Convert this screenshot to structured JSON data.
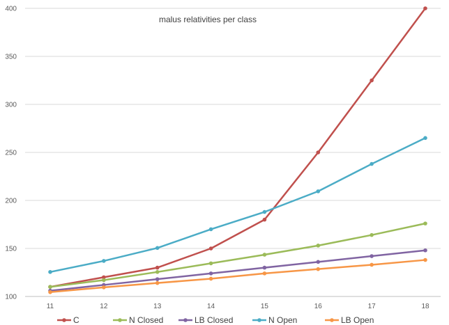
{
  "chart_data": {
    "type": "line",
    "title": "malus relativities per class",
    "xlabel": "",
    "ylabel": "",
    "categories": [
      "11",
      "12",
      "13",
      "14",
      "15",
      "16",
      "17",
      "18"
    ],
    "ylim": [
      100,
      400
    ],
    "yticks": [
      100,
      150,
      200,
      250,
      300,
      350,
      400
    ],
    "grid": "horizontal",
    "legend_position": "bottom",
    "series": [
      {
        "name": "C",
        "color": "#c0504d",
        "values": [
          110,
          120,
          130,
          150,
          180,
          250,
          325,
          400
        ]
      },
      {
        "name": "N Closed",
        "color": "#9bbb59",
        "values": [
          110,
          117,
          125.5,
          134.5,
          143.5,
          153,
          164,
          176
        ]
      },
      {
        "name": "LB Closed",
        "color": "#8064a2",
        "values": [
          106,
          112,
          118,
          124,
          130,
          136,
          142,
          148
        ]
      },
      {
        "name": "N Open",
        "color": "#4bacc6",
        "values": [
          125.5,
          137,
          150.5,
          170,
          188,
          209.5,
          238,
          265
        ]
      },
      {
        "name": "LB Open",
        "color": "#f79646",
        "values": [
          104.5,
          109.5,
          114,
          118.5,
          124,
          128.5,
          133,
          138
        ]
      }
    ]
  }
}
